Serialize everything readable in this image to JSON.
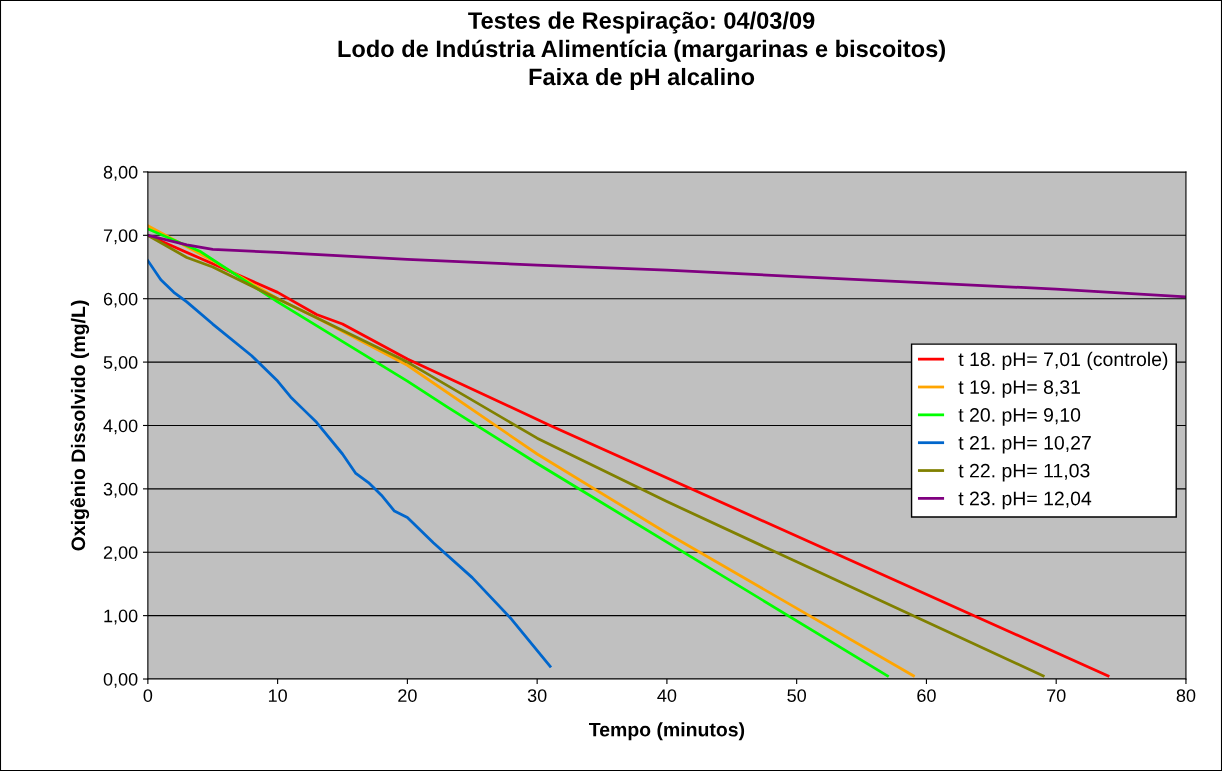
{
  "chart_data": {
    "type": "line",
    "title": "Testes de Respiração: 04/03/09\nLodo de Indústria Alimentícia (margarinas e biscoitos)\nFaixa de pH alcalino",
    "xlabel": "Tempo (minutos)",
    "ylabel": "Oxigênio Dissolvido (mg/L)",
    "xlim": [
      0,
      80
    ],
    "xticks": [
      0,
      10,
      20,
      30,
      40,
      50,
      60,
      70,
      80
    ],
    "ylim": [
      0,
      8
    ],
    "yticks": [
      {
        "value": 0,
        "label": "0,00"
      },
      {
        "value": 1,
        "label": "1,00"
      },
      {
        "value": 2,
        "label": "2,00"
      },
      {
        "value": 3,
        "label": "3,00"
      },
      {
        "value": 4,
        "label": "4,00"
      },
      {
        "value": 5,
        "label": "5,00"
      },
      {
        "value": 6,
        "label": "6,00"
      },
      {
        "value": 7,
        "label": "7,00"
      },
      {
        "value": 8,
        "label": "8,00"
      }
    ],
    "grid": "y",
    "legend": "right",
    "marker": "none",
    "line_style": "solid",
    "series": [
      {
        "name": "t 18. pH= 7,01 (controle)",
        "color": "#ff0000",
        "x": [
          0,
          5,
          10,
          13,
          15,
          20,
          31,
          74
        ],
        "values": [
          7.0,
          6.55,
          6.1,
          5.75,
          5.6,
          5.05,
          4.0,
          0.05
        ]
      },
      {
        "name": "t 19. pH= 8,31",
        "color": "#ffa500",
        "x": [
          0,
          5,
          10,
          13,
          20,
          30,
          40,
          59
        ],
        "values": [
          7.15,
          6.6,
          6.0,
          5.7,
          4.95,
          3.55,
          2.3,
          0.05
        ]
      },
      {
        "name": "t 20. pH= 9,10",
        "color": "#00ff00",
        "x": [
          0,
          4,
          10,
          20,
          23,
          30,
          57
        ],
        "values": [
          7.1,
          6.75,
          5.95,
          4.7,
          4.3,
          3.4,
          0.05
        ]
      },
      {
        "name": "t 21. pH= 10,27",
        "color": "#0066cc",
        "x": [
          0,
          1,
          2,
          3,
          5,
          8,
          10,
          11,
          12,
          13,
          15,
          16,
          17,
          18,
          19,
          20,
          22,
          25,
          28,
          31
        ],
        "values": [
          6.6,
          6.3,
          6.1,
          5.95,
          5.6,
          5.1,
          4.7,
          4.45,
          4.25,
          4.05,
          3.55,
          3.25,
          3.1,
          2.9,
          2.65,
          2.55,
          2.15,
          1.6,
          0.95,
          0.2
        ]
      },
      {
        "name": "t 22. pH= 11,03",
        "color": "#808000",
        "x": [
          0,
          3,
          5,
          10,
          13,
          20,
          30,
          40,
          50,
          69
        ],
        "values": [
          7.0,
          6.65,
          6.5,
          6.0,
          5.7,
          5.0,
          3.8,
          2.8,
          1.85,
          0.05
        ]
      },
      {
        "name": "t 23. pH= 12,04",
        "color": "#800080",
        "x": [
          0,
          3,
          5,
          10,
          20,
          30,
          40,
          50,
          60,
          70,
          80
        ],
        "values": [
          7.0,
          6.85,
          6.78,
          6.73,
          6.62,
          6.53,
          6.45,
          6.35,
          6.25,
          6.15,
          6.03
        ]
      }
    ]
  }
}
